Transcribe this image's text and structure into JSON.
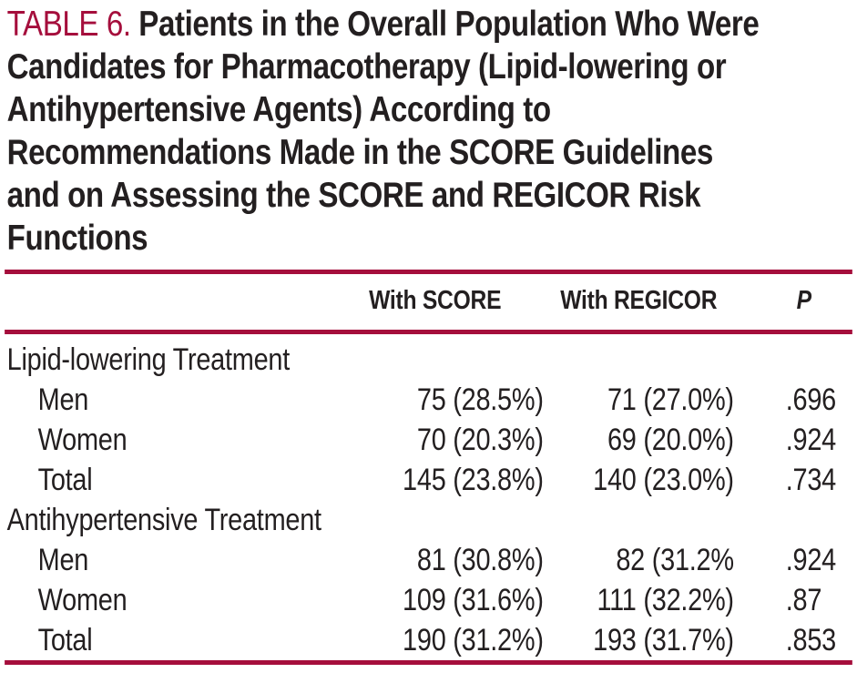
{
  "title": {
    "label": "TABLE 6.",
    "lines": [
      "Patients in the Overall Population Who Were",
      "Candidates for Pharmacotherapy (Lipid-lowering or",
      "Antihypertensive Agents) According to",
      "Recommendations Made in the SCORE Guidelines",
      "and on Assessing the SCORE and REGICOR Risk",
      "Functions"
    ]
  },
  "table": {
    "columns": [
      "",
      "With SCORE",
      "With REGICOR",
      "P"
    ],
    "sections": [
      {
        "header": "Lipid-lowering Treatment",
        "rows": [
          {
            "label": "Men",
            "score": "75 (28.5%)",
            "regicor": "71 (27.0%)",
            "p": ".696"
          },
          {
            "label": "Women",
            "score": "70 (20.3%)",
            "regicor": "69 (20.0%)",
            "p": ".924"
          },
          {
            "label": "Total",
            "score": "145 (23.8%)",
            "regicor": "140 (23.0%)",
            "p": ".734"
          }
        ]
      },
      {
        "header": "Antihypertensive Treatment",
        "rows": [
          {
            "label": "Men",
            "score": "81 (30.8%)",
            "regicor": "82 (31.2%",
            "p": ".924"
          },
          {
            "label": "Women",
            "score": "109 (31.6%)",
            "regicor": "111 (32.2%)",
            "p": ".87"
          },
          {
            "label": "Total",
            "score": "190 (31.2%)",
            "regicor": "193 (31.7%)",
            "p": ".853"
          }
        ]
      }
    ]
  },
  "colors": {
    "accent": "#a50e3c",
    "text": "#231f20"
  }
}
